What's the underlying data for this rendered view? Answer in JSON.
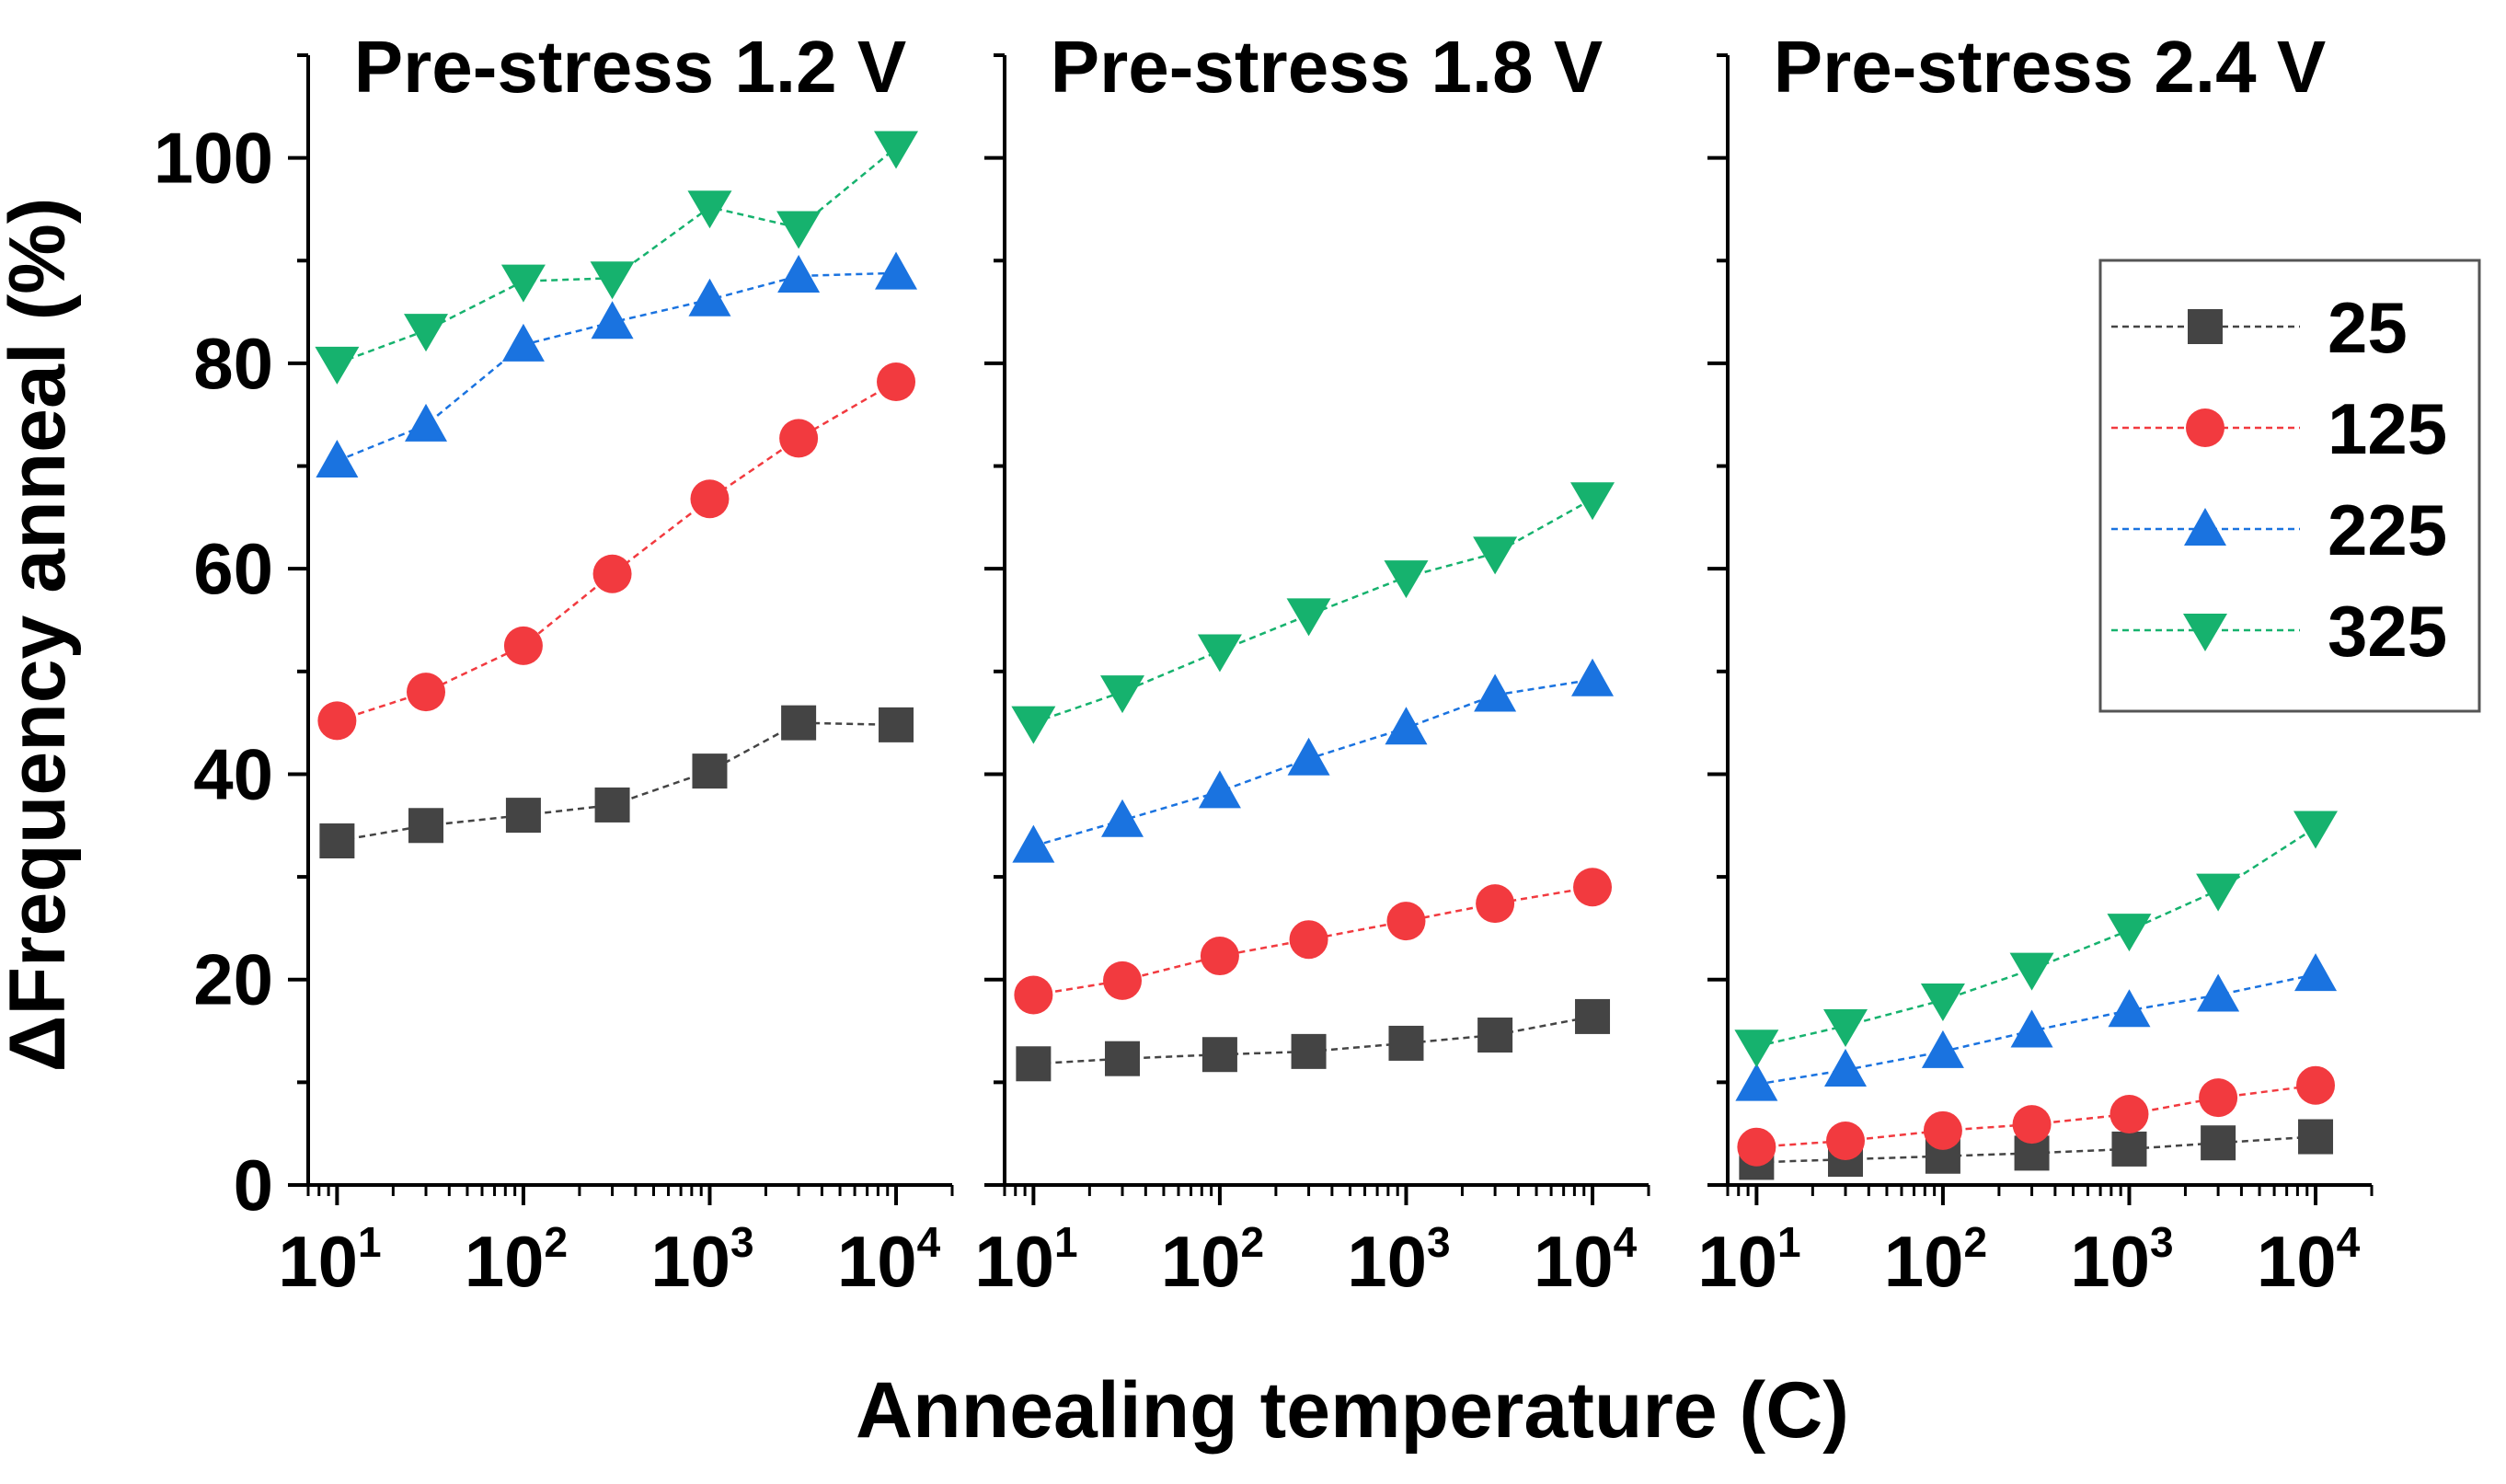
{
  "chart_data": {
    "type": "scatter",
    "xlabel": "Annealing temperature (C)",
    "ylabel": "ΔFrequency anneal (%)",
    "xscale": "log",
    "ylim": [
      0,
      110
    ],
    "xlim": [
      7,
      20000
    ],
    "y_ticks": [
      0,
      20,
      40,
      60,
      80,
      100
    ],
    "x_ticks": [
      {
        "value": 10,
        "base": "10",
        "exp": "1"
      },
      {
        "value": 100,
        "base": "10",
        "exp": "2"
      },
      {
        "value": 1000,
        "base": "10",
        "exp": "3"
      },
      {
        "value": 10000,
        "base": "10",
        "exp": "4"
      }
    ],
    "x": [
      10,
      30,
      100,
      300,
      1000,
      3000,
      10000
    ],
    "legend": {
      "position": "right-middle",
      "entries": [
        "25",
        "125",
        "225",
        "325"
      ]
    },
    "series_style": [
      {
        "name": "25",
        "color": "#444444",
        "marker": "square"
      },
      {
        "name": "125",
        "color": "#f23a3f",
        "marker": "circle"
      },
      {
        "name": "225",
        "color": "#1a73e0",
        "marker": "triangle-up"
      },
      {
        "name": "325",
        "color": "#16b26e",
        "marker": "triangle-down"
      }
    ],
    "panels": [
      {
        "title": "Pre-stress 1.2 V",
        "series": [
          {
            "name": "25",
            "values": [
              33.5,
              35.0,
              36.0,
              37.0,
              40.3,
              45.0,
              44.8
            ]
          },
          {
            "name": "125",
            "values": [
              45.2,
              48.0,
              52.5,
              59.5,
              66.8,
              72.7,
              78.2
            ]
          },
          {
            "name": "225",
            "values": [
              70.5,
              74.0,
              81.8,
              84.0,
              86.2,
              88.5,
              88.8
            ]
          },
          {
            "name": "325",
            "values": [
              80.0,
              83.2,
              88.0,
              88.3,
              95.2,
              93.2,
              101.0
            ]
          }
        ]
      },
      {
        "title": "Pre-stress 1.8 V",
        "series": [
          {
            "name": "25",
            "values": [
              11.8,
              12.3,
              12.7,
              13.0,
              13.8,
              14.6,
              16.4
            ]
          },
          {
            "name": "125",
            "values": [
              18.5,
              19.9,
              22.3,
              23.9,
              25.7,
              27.4,
              29.0
            ]
          },
          {
            "name": "225",
            "values": [
              33.0,
              35.5,
              38.3,
              41.5,
              44.5,
              47.7,
              49.2
            ]
          },
          {
            "name": "325",
            "values": [
              45.0,
              48.0,
              52.0,
              55.5,
              59.2,
              61.5,
              66.8
            ]
          }
        ]
      },
      {
        "title": "Pre-stress 2.4 V",
        "series": [
          {
            "name": "25",
            "values": [
              2.2,
              2.5,
              2.8,
              3.1,
              3.5,
              4.1,
              4.7
            ]
          },
          {
            "name": "125",
            "values": [
              3.7,
              4.3,
              5.3,
              5.9,
              6.9,
              8.5,
              9.7
            ]
          },
          {
            "name": "225",
            "values": [
              9.8,
              11.2,
              13.0,
              15.0,
              17.0,
              18.5,
              20.5
            ]
          },
          {
            "name": "325",
            "values": [
              13.5,
              15.5,
              18.0,
              21.0,
              24.8,
              28.7,
              34.8
            ]
          }
        ]
      }
    ]
  }
}
